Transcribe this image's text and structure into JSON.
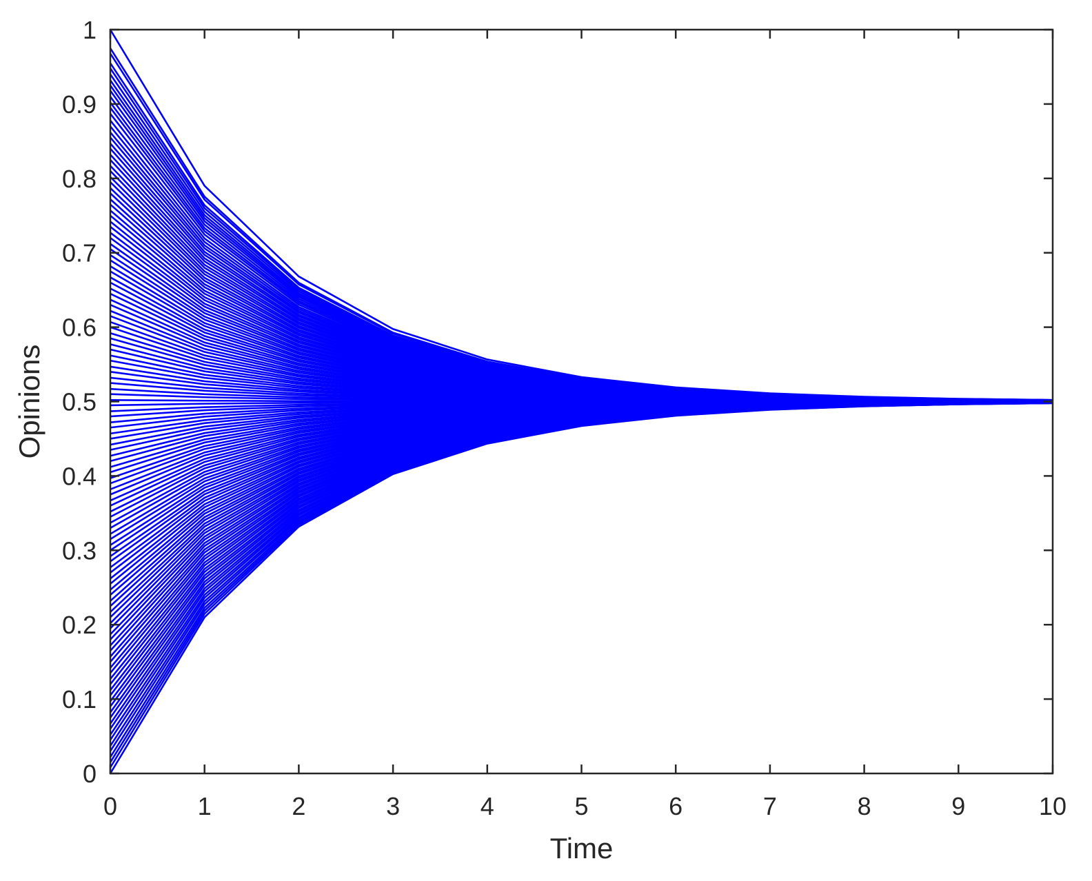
{
  "chart_data": {
    "type": "line",
    "title": "",
    "xlabel": "Time",
    "ylabel": "Opinions",
    "xlim": [
      0,
      10
    ],
    "ylim": [
      0,
      1
    ],
    "x_ticks": [
      0,
      1,
      2,
      3,
      4,
      5,
      6,
      7,
      8,
      9,
      10
    ],
    "y_ticks": [
      0,
      0.1,
      0.2,
      0.3,
      0.4,
      0.5,
      0.6,
      0.7,
      0.8,
      0.9,
      1
    ],
    "x_tick_labels": [
      "0",
      "1",
      "2",
      "3",
      "4",
      "5",
      "6",
      "7",
      "8",
      "9",
      "10"
    ],
    "y_tick_labels": [
      "0",
      "0.1",
      "0.2",
      "0.3",
      "0.4",
      "0.5",
      "0.6",
      "0.7",
      "0.8",
      "0.9",
      "1"
    ],
    "grid": false,
    "legend": "none",
    "series_color": "#0000ff",
    "x": [
      0,
      1,
      2,
      3,
      4,
      5,
      6,
      7,
      8,
      9,
      10
    ],
    "initial_opinions": [
      1.0,
      0.975,
      0.968,
      0.955,
      0.948,
      0.94,
      0.932,
      0.925,
      0.918,
      0.91,
      0.902,
      0.895,
      0.887,
      0.878,
      0.87,
      0.862,
      0.855,
      0.847,
      0.84,
      0.832,
      0.825,
      0.817,
      0.81,
      0.802,
      0.795,
      0.787,
      0.78,
      0.772,
      0.765,
      0.757,
      0.75,
      0.742,
      0.735,
      0.727,
      0.72,
      0.712,
      0.705,
      0.697,
      0.69,
      0.682,
      0.675,
      0.667,
      0.66,
      0.652,
      0.645,
      0.637,
      0.63,
      0.622,
      0.615,
      0.607,
      0.6,
      0.592,
      0.585,
      0.577,
      0.57,
      0.562,
      0.555,
      0.547,
      0.54,
      0.532,
      0.525,
      0.517,
      0.51,
      0.502,
      0.495,
      0.487,
      0.48,
      0.472,
      0.465,
      0.457,
      0.45,
      0.442,
      0.435,
      0.427,
      0.42,
      0.412,
      0.405,
      0.397,
      0.39,
      0.382,
      0.375,
      0.367,
      0.36,
      0.352,
      0.345,
      0.337,
      0.33,
      0.322,
      0.315,
      0.307,
      0.3,
      0.292,
      0.285,
      0.277,
      0.27,
      0.262,
      0.255,
      0.247,
      0.24,
      0.232,
      0.225,
      0.217,
      0.21,
      0.202,
      0.195,
      0.187,
      0.18,
      0.172,
      0.165,
      0.157,
      0.15,
      0.142,
      0.135,
      0.127,
      0.12,
      0.112,
      0.105,
      0.097,
      0.09,
      0.082,
      0.075,
      0.067,
      0.06,
      0.052,
      0.045,
      0.037,
      0.03,
      0.022,
      0.015,
      0.008,
      0.0
    ],
    "consensus_value": 0.5,
    "contraction_per_step": 0.58
  }
}
